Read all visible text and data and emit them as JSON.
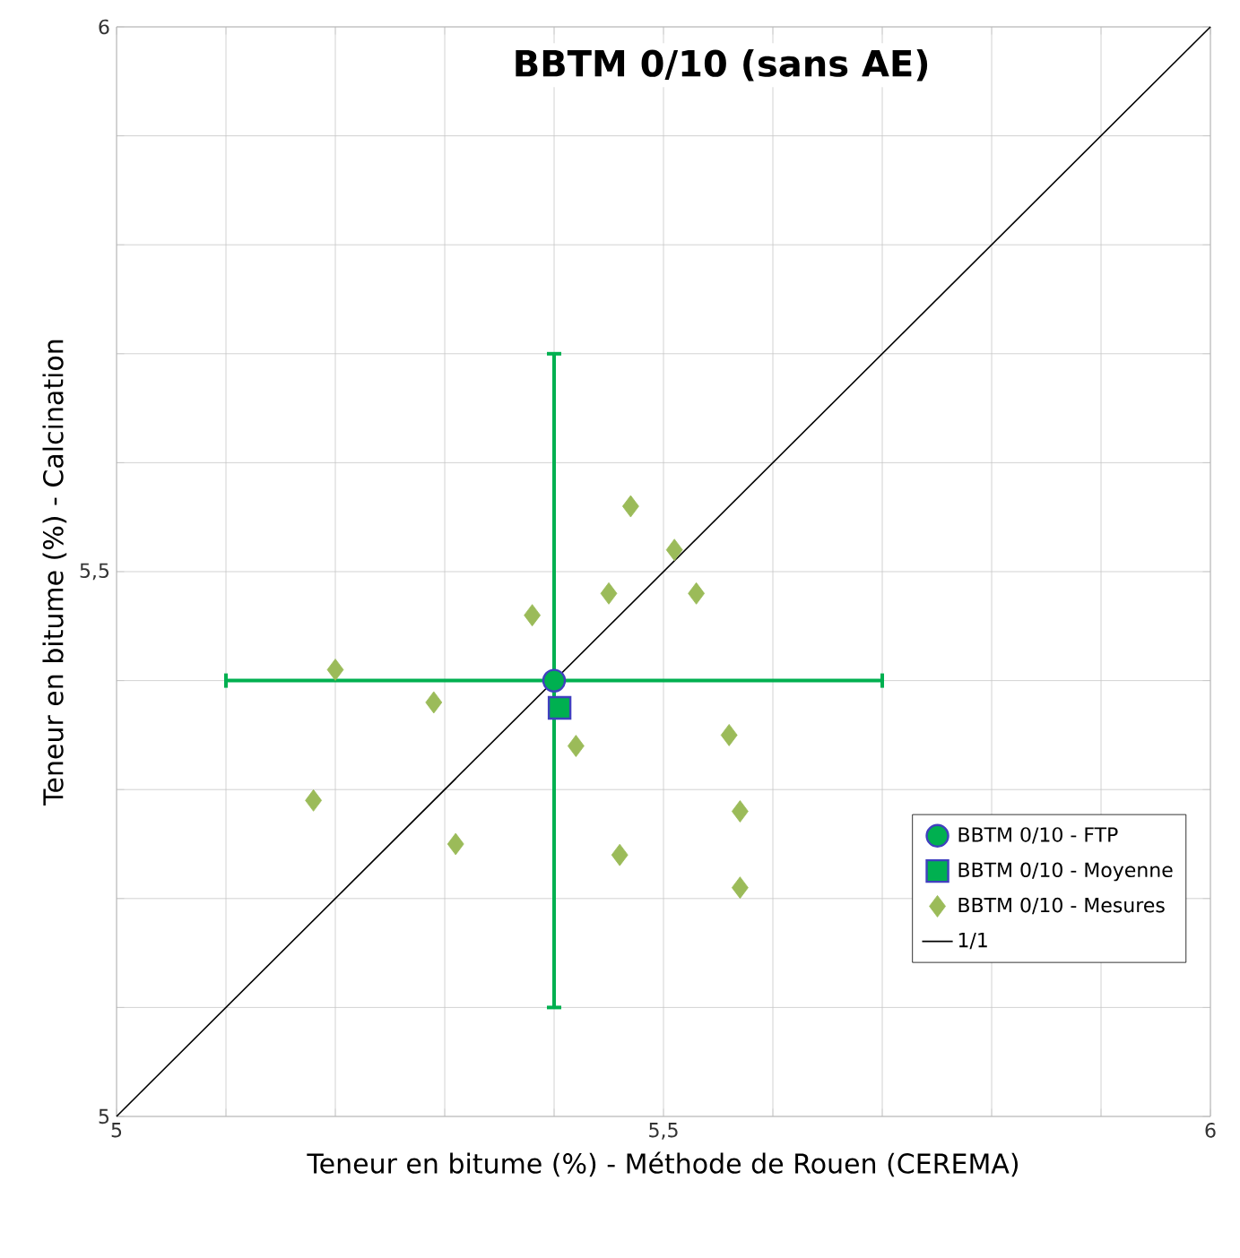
{
  "chart_data": {
    "type": "scatter",
    "title": "**BBTM 0/10 (sans AE)**",
    "xlabel": "Teneur en bitume (%) - Méthode de Rouen (CEREMA)",
    "ylabel": "Teneur en bitume (%) - Calcination",
    "xlim": [
      5,
      6
    ],
    "ylim": [
      5,
      6
    ],
    "xticks": [
      5,
      {
        "value": 5.1,
        "label": null
      },
      {
        "value": 5.2,
        "label": null
      },
      {
        "value": 5.3,
        "label": null
      },
      {
        "value": 5.4,
        "label": null
      },
      {
        "value": 5.5,
        "label": "5,5"
      },
      {
        "value": 5.6,
        "label": null
      },
      {
        "value": 5.7,
        "label": null
      },
      {
        "value": 5.8,
        "label": null
      },
      {
        "value": 5.9,
        "label": null
      },
      6
    ],
    "yticks": [
      5,
      {
        "value": 5.1,
        "label": null
      },
      {
        "value": 5.2,
        "label": null
      },
      {
        "value": 5.3,
        "label": null
      },
      {
        "value": 5.4,
        "label": null
      },
      {
        "value": 5.5,
        "label": "5,5"
      },
      {
        "value": 5.6,
        "label": null
      },
      {
        "value": 5.7,
        "label": null
      },
      {
        "value": 5.8,
        "label": null
      },
      {
        "value": 5.9,
        "label": null
      },
      6
    ],
    "grid": true,
    "legend": "bottom right",
    "series": [
      {
        "name": "BBTM 0/10 - FTP",
        "type": "scatter",
        "marker": "circle",
        "color": "#00b050",
        "x": [
          5.4
        ],
        "values": [
          5.4
        ],
        "errors": [
          0.3
        ],
        "xerrors": [
          0.3
        ]
      },
      {
        "name": "BBTM 0/10 - Moyenne",
        "type": "scatter",
        "marker": "square",
        "color": "#00b050",
        "x": [
          5.405
        ],
        "values": [
          5.375
        ]
      },
      {
        "name": "BBTM 0/10 - Mesures",
        "type": "scatter",
        "marker": "diamond",
        "color": "#9bbb59",
        "x": [
          5.47,
          5.51,
          5.45,
          5.53,
          5.38,
          5.2,
          5.29,
          5.42,
          5.56,
          5.18,
          5.57,
          5.31,
          5.46,
          5.57
        ],
        "values": [
          5.56,
          5.52,
          5.48,
          5.48,
          5.46,
          5.41,
          5.38,
          5.34,
          5.35,
          5.29,
          5.28,
          5.25,
          5.24,
          5.21
        ]
      },
      {
        "name": "1/1",
        "type": "line",
        "marker": "none",
        "color": "#000000",
        "x": [
          5,
          6
        ],
        "values": [
          5,
          6
        ]
      }
    ]
  }
}
